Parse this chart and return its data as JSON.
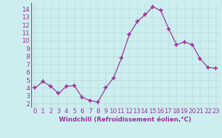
{
  "x": [
    0,
    1,
    2,
    3,
    4,
    5,
    6,
    7,
    8,
    9,
    10,
    11,
    12,
    13,
    14,
    15,
    16,
    17,
    18,
    19,
    20,
    21,
    22,
    23
  ],
  "y": [
    4.0,
    4.8,
    4.2,
    3.3,
    4.2,
    4.3,
    2.8,
    2.4,
    2.2,
    4.0,
    5.3,
    7.8,
    10.8,
    12.4,
    13.3,
    14.3,
    13.8,
    11.5,
    9.5,
    9.8,
    9.5,
    7.7,
    6.6,
    6.5
  ],
  "line_color": "#993399",
  "marker": "+",
  "marker_size": 4,
  "marker_linewidth": 1.2,
  "bg_color": "#cceeee",
  "grid_color": "#bbdddd",
  "xlabel": "Windchill (Refroidissement éolien,°C)",
  "xlabel_fontsize": 6.5,
  "tick_fontsize": 6.5,
  "ylim": [
    1.5,
    14.8
  ],
  "xlim": [
    -0.5,
    23.5
  ],
  "yticks": [
    2,
    3,
    4,
    5,
    6,
    7,
    8,
    9,
    10,
    11,
    12,
    13,
    14
  ],
  "xticks": [
    0,
    1,
    2,
    3,
    4,
    5,
    6,
    7,
    8,
    9,
    10,
    11,
    12,
    13,
    14,
    15,
    16,
    17,
    18,
    19,
    20,
    21,
    22,
    23
  ]
}
